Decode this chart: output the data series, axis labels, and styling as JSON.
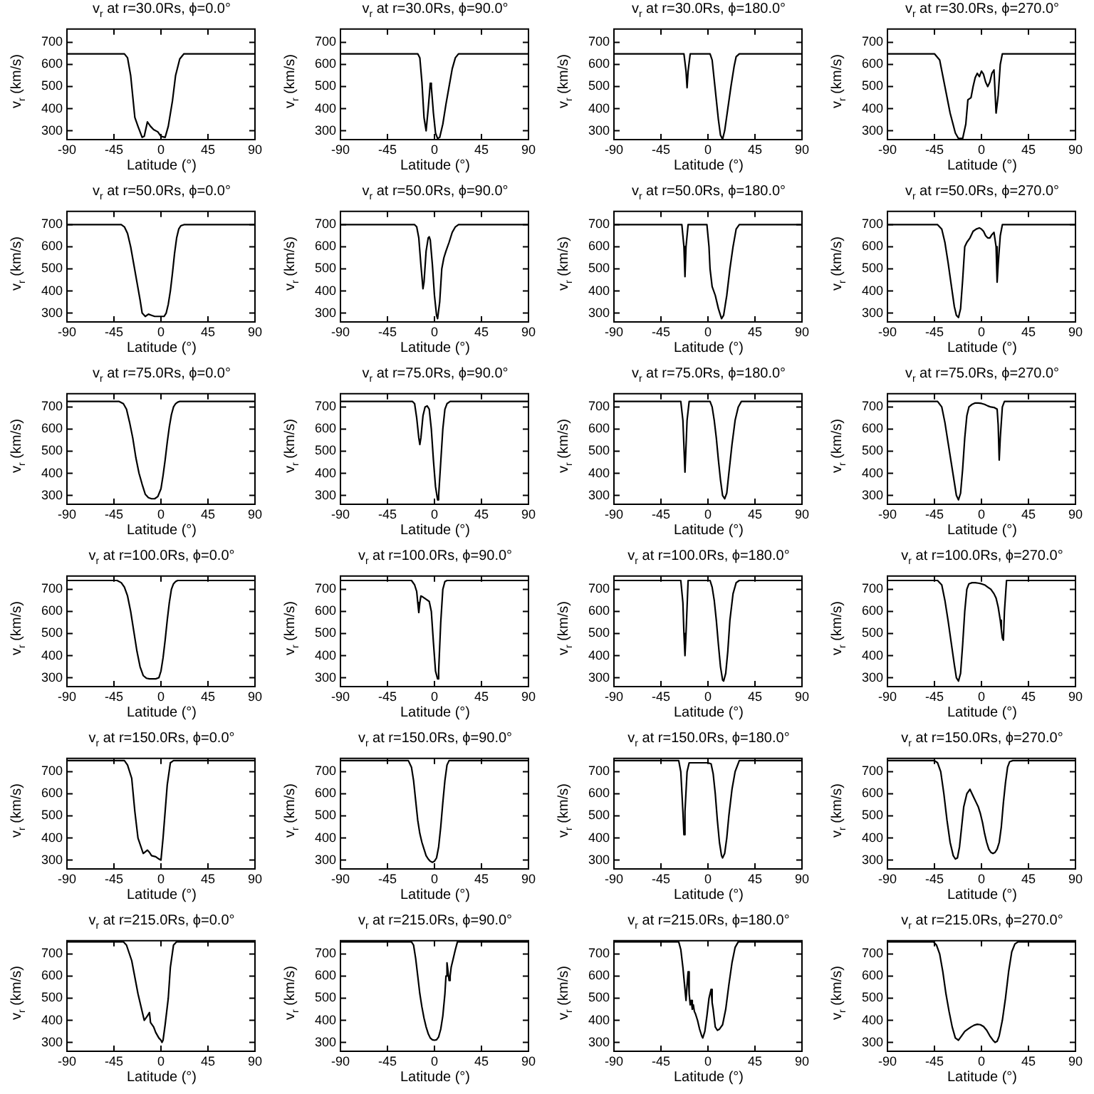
{
  "chart_data": [
    {
      "type": "line",
      "title": "v$_{r}$ at r=30.0Rs, ϕ=0.0°",
      "xlabel": "Latitude (°)",
      "ylabel": "v$_{r}$ (km/s)",
      "xlim": [
        -90,
        90
      ],
      "ylim": [
        260,
        760
      ],
      "xticks": [
        -90,
        -45,
        0,
        45,
        90
      ],
      "yticks": [
        300,
        400,
        500,
        600,
        700
      ],
      "color": "#000000",
      "x": [
        -90,
        -35,
        -32,
        -29,
        -25,
        -22,
        -18,
        -16,
        -13,
        -10,
        -7,
        -3,
        0,
        4,
        7,
        11,
        14,
        18,
        22,
        90
      ],
      "values": [
        648,
        648,
        630,
        550,
        360,
        320,
        270,
        275,
        340,
        320,
        305,
        295,
        275,
        270,
        320,
        435,
        550,
        625,
        648,
        648
      ]
    },
    {
      "type": "line",
      "title": "v$_{r}$ at r=30.0Rs, ϕ=90.0°",
      "xlabel": "Latitude (°)",
      "ylabel": "v$_{r}$ (km/s)",
      "xlim": [
        -90,
        90
      ],
      "ylim": [
        260,
        760
      ],
      "xticks": [
        -90,
        -45,
        0,
        45,
        90
      ],
      "yticks": [
        300,
        400,
        500,
        600,
        700
      ],
      "color": "#000000",
      "x": [
        -90,
        -16,
        -14,
        -12,
        -10,
        -8,
        -6,
        -4,
        -3,
        -1,
        1,
        3,
        5,
        8,
        11,
        14,
        17,
        20,
        23,
        90
      ],
      "values": [
        648,
        648,
        630,
        520,
        360,
        300,
        400,
        515,
        500,
        380,
        290,
        265,
        270,
        330,
        420,
        500,
        580,
        630,
        648,
        648
      ]
    },
    {
      "type": "line",
      "title": "v$_{r}$ at r=30.0Rs, ϕ=180.0°",
      "xlabel": "Latitude (°)",
      "ylabel": "v$_{r}$ (km/s)",
      "xlim": [
        -90,
        90
      ],
      "ylim": [
        260,
        760
      ],
      "xticks": [
        -90,
        -45,
        0,
        45,
        90
      ],
      "yticks": [
        300,
        400,
        500,
        600,
        700
      ],
      "color": "#000000",
      "x": [
        -90,
        -23,
        -21,
        -20,
        -19,
        -17,
        2,
        4,
        6,
        8,
        10,
        12,
        14,
        16,
        19,
        22,
        25,
        27,
        30,
        90
      ],
      "values": [
        648,
        648,
        570,
        495,
        570,
        648,
        648,
        620,
        530,
        440,
        350,
        280,
        262,
        300,
        400,
        500,
        590,
        635,
        648,
        648
      ]
    },
    {
      "type": "line",
      "title": "v$_{r}$ at r=30.0Rs, ϕ=270.0°",
      "xlabel": "Latitude (°)",
      "ylabel": "v$_{r}$ (km/s)",
      "xlim": [
        -90,
        90
      ],
      "ylim": [
        260,
        760
      ],
      "xticks": [
        -90,
        -45,
        0,
        45,
        90
      ],
      "yticks": [
        300,
        400,
        500,
        600,
        700
      ],
      "color": "#000000",
      "x": [
        -90,
        -45,
        -40,
        -35,
        -30,
        -25,
        -22,
        -18,
        -15,
        -13,
        -10,
        -8,
        -6,
        -4,
        -2,
        0,
        2,
        4,
        6,
        8,
        10,
        12,
        14,
        16,
        18,
        20,
        90
      ],
      "values": [
        648,
        648,
        620,
        500,
        380,
        290,
        265,
        265,
        330,
        440,
        450,
        500,
        540,
        560,
        545,
        570,
        555,
        520,
        500,
        520,
        560,
        575,
        380,
        460,
        600,
        648,
        648
      ]
    },
    {
      "type": "line",
      "title": "v$_{r}$ at r=50.0Rs, ϕ=0.0°",
      "xlabel": "Latitude (°)",
      "ylabel": "v$_{r}$ (km/s)",
      "xlim": [
        -90,
        90
      ],
      "ylim": [
        260,
        760
      ],
      "xticks": [
        -90,
        -45,
        0,
        45,
        90
      ],
      "yticks": [
        300,
        400,
        500,
        600,
        700
      ],
      "color": "#000000",
      "x": [
        -90,
        -38,
        -35,
        -32,
        -29,
        -26,
        -23,
        -20,
        -18,
        -15,
        -12,
        -9,
        -6,
        -3,
        0,
        3,
        5,
        7,
        9,
        11,
        13,
        15,
        17,
        19,
        22,
        90
      ],
      "values": [
        700,
        700,
        690,
        660,
        600,
        520,
        440,
        360,
        300,
        285,
        295,
        290,
        285,
        285,
        285,
        285,
        300,
        340,
        400,
        480,
        570,
        640,
        680,
        695,
        700,
        700
      ]
    },
    {
      "type": "line",
      "title": "v$_{r}$ at r=50.0Rs, ϕ=90.0°",
      "xlabel": "Latitude (°)",
      "ylabel": "v$_{r}$ (km/s)",
      "xlim": [
        -90,
        90
      ],
      "ylim": [
        260,
        760
      ],
      "xticks": [
        -90,
        -45,
        0,
        45,
        90
      ],
      "yticks": [
        300,
        400,
        500,
        600,
        700
      ],
      "color": "#000000",
      "x": [
        -90,
        -19,
        -17,
        -15,
        -13,
        -11,
        -10,
        -8,
        -6,
        -5,
        -4,
        -2,
        0,
        2,
        3,
        5,
        7,
        9,
        11,
        14,
        17,
        20,
        23,
        90
      ],
      "values": [
        700,
        700,
        690,
        640,
        520,
        410,
        440,
        580,
        640,
        645,
        630,
        520,
        380,
        290,
        275,
        350,
        500,
        550,
        580,
        620,
        665,
        690,
        700,
        700
      ]
    },
    {
      "type": "line",
      "title": "v$_{r}$ at r=50.0Rs, ϕ=180.0°",
      "xlabel": "Latitude (°)",
      "ylabel": "v$_{r}$ (km/s)",
      "xlim": [
        -90,
        90
      ],
      "ylim": [
        260,
        760
      ],
      "xticks": [
        -90,
        -45,
        0,
        45,
        90
      ],
      "yticks": [
        300,
        400,
        500,
        600,
        700
      ],
      "color": "#000000",
      "x": [
        -90,
        -25,
        -23,
        -22,
        -21,
        -19,
        -1,
        1,
        2,
        4,
        7,
        10,
        13,
        15,
        18,
        21,
        24,
        27,
        30,
        90
      ],
      "values": [
        700,
        700,
        600,
        465,
        600,
        700,
        700,
        600,
        500,
        420,
        380,
        320,
        275,
        290,
        380,
        500,
        600,
        680,
        700,
        700
      ]
    },
    {
      "type": "line",
      "title": "v$_{r}$ at r=50.0Rs, ϕ=270.0°",
      "xlabel": "Latitude (°)",
      "ylabel": "v$_{r}$ (km/s)",
      "xlim": [
        -90,
        90
      ],
      "ylim": [
        260,
        760
      ],
      "xticks": [
        -90,
        -45,
        0,
        45,
        90
      ],
      "yticks": [
        300,
        400,
        500,
        600,
        700
      ],
      "color": "#000000",
      "x": [
        -90,
        -42,
        -38,
        -35,
        -32,
        -29,
        -26,
        -24,
        -22,
        -20,
        -18,
        -16,
        -14,
        -11,
        -8,
        -5,
        -2,
        0,
        2,
        4,
        6,
        8,
        10,
        12,
        14,
        15,
        16,
        18,
        20,
        90
      ],
      "values": [
        700,
        700,
        680,
        620,
        530,
        430,
        330,
        290,
        280,
        320,
        450,
        600,
        620,
        640,
        670,
        680,
        685,
        680,
        670,
        650,
        640,
        640,
        655,
        665,
        600,
        440,
        520,
        650,
        700,
        700
      ]
    },
    {
      "type": "line",
      "title": "v$_{r}$ at r=75.0Rs, ϕ=0.0°",
      "xlabel": "Latitude (°)",
      "ylabel": "v$_{r}$ (km/s)",
      "xlim": [
        -90,
        90
      ],
      "ylim": [
        260,
        760
      ],
      "xticks": [
        -90,
        -45,
        0,
        45,
        90
      ],
      "yticks": [
        300,
        400,
        500,
        600,
        700
      ],
      "color": "#000000",
      "x": [
        -90,
        -40,
        -36,
        -33,
        -30,
        -27,
        -24,
        -21,
        -18,
        -15,
        -12,
        -9,
        -6,
        -3,
        0,
        2,
        4,
        6,
        8,
        10,
        12,
        14,
        16,
        18,
        21,
        90
      ],
      "values": [
        725,
        725,
        715,
        690,
        630,
        560,
        470,
        400,
        350,
        305,
        290,
        285,
        285,
        295,
        330,
        390,
        460,
        540,
        610,
        665,
        700,
        715,
        722,
        725,
        725,
        725
      ]
    },
    {
      "type": "line",
      "title": "v$_{r}$ at r=75.0Rs, ϕ=90.0°",
      "xlabel": "Latitude (°)",
      "ylabel": "v$_{r}$ (km/s)",
      "xlim": [
        -90,
        90
      ],
      "ylim": [
        260,
        760
      ],
      "xticks": [
        -90,
        -45,
        0,
        45,
        90
      ],
      "yticks": [
        300,
        400,
        500,
        600,
        700
      ],
      "color": "#000000",
      "x": [
        -90,
        -21,
        -19,
        -17,
        -15,
        -14,
        -13,
        -11,
        -9,
        -7,
        -5,
        -3,
        -1,
        1,
        3,
        4,
        6,
        8,
        10,
        12,
        15,
        90
      ],
      "values": [
        725,
        725,
        715,
        650,
        560,
        530,
        560,
        660,
        700,
        705,
        690,
        600,
        460,
        340,
        280,
        300,
        450,
        600,
        690,
        715,
        725,
        725
      ]
    },
    {
      "type": "line",
      "title": "v$_{r}$ at r=75.0Rs, ϕ=180.0°",
      "xlabel": "Latitude (°)",
      "ylabel": "v$_{r}$ (km/s)",
      "xlim": [
        -90,
        90
      ],
      "ylim": [
        260,
        760
      ],
      "xticks": [
        -90,
        -45,
        0,
        45,
        90
      ],
      "yticks": [
        300,
        400,
        500,
        600,
        700
      ],
      "color": "#000000",
      "x": [
        -90,
        -26,
        -24,
        -22,
        -20,
        -18,
        2,
        4,
        6,
        8,
        10,
        12,
        14,
        16,
        18,
        20,
        23,
        26,
        29,
        32,
        90
      ],
      "values": [
        725,
        725,
        640,
        405,
        640,
        725,
        725,
        700,
        640,
        560,
        460,
        370,
        300,
        285,
        310,
        400,
        530,
        640,
        700,
        725,
        725
      ]
    },
    {
      "type": "line",
      "title": "v$_{r}$ at r=75.0Rs, ϕ=270.0°",
      "xlabel": "Latitude (°)",
      "ylabel": "v$_{r}$ (km/s)",
      "xlim": [
        -90,
        90
      ],
      "ylim": [
        260,
        760
      ],
      "xticks": [
        -90,
        -45,
        0,
        45,
        90
      ],
      "yticks": [
        300,
        400,
        500,
        600,
        700
      ],
      "color": "#000000",
      "x": [
        -90,
        -42,
        -38,
        -35,
        -32,
        -29,
        -26,
        -24,
        -22,
        -20,
        -18,
        -16,
        -14,
        -12,
        -9,
        -6,
        -3,
        0,
        3,
        6,
        9,
        12,
        15,
        16,
        17,
        18,
        20,
        22,
        90
      ],
      "values": [
        725,
        725,
        700,
        630,
        540,
        450,
        360,
        300,
        280,
        310,
        420,
        560,
        660,
        700,
        712,
        718,
        718,
        716,
        712,
        705,
        700,
        698,
        690,
        620,
        460,
        560,
        700,
        725,
        725
      ]
    },
    {
      "type": "line",
      "title": "v$_{r}$ at r=100.0Rs, ϕ=0.0°",
      "xlabel": "Latitude (°)",
      "ylabel": "v$_{r}$ (km/s)",
      "xlim": [
        -90,
        90
      ],
      "ylim": [
        260,
        760
      ],
      "xticks": [
        -90,
        -45,
        0,
        45,
        90
      ],
      "yticks": [
        300,
        400,
        500,
        600,
        700
      ],
      "color": "#000000",
      "x": [
        -90,
        -42,
        -38,
        -35,
        -32,
        -29,
        -26,
        -23,
        -20,
        -17,
        -14,
        -11,
        -8,
        -5,
        -2,
        0,
        2,
        4,
        6,
        8,
        10,
        12,
        14,
        16,
        19,
        90
      ],
      "values": [
        740,
        740,
        730,
        710,
        670,
        600,
        510,
        420,
        350,
        310,
        298,
        295,
        295,
        295,
        300,
        330,
        390,
        470,
        560,
        640,
        700,
        725,
        735,
        740,
        740,
        740
      ]
    },
    {
      "type": "line",
      "title": "v$_{r}$ at r=100.0Rs, ϕ=90.0°",
      "xlabel": "Latitude (°)",
      "ylabel": "v$_{r}$ (km/s)",
      "xlim": [
        -90,
        90
      ],
      "ylim": [
        260,
        760
      ],
      "xticks": [
        -90,
        -45,
        0,
        45,
        90
      ],
      "yticks": [
        300,
        400,
        500,
        600,
        700
      ],
      "color": "#000000",
      "x": [
        -90,
        -22,
        -19,
        -17,
        -16,
        -15,
        -14,
        -13,
        -11,
        -8,
        -5,
        -3,
        -1,
        1,
        3,
        4,
        6,
        8,
        10,
        12,
        90
      ],
      "values": [
        740,
        740,
        720,
        690,
        640,
        595,
        640,
        670,
        665,
        655,
        645,
        600,
        460,
        330,
        295,
        330,
        550,
        700,
        735,
        740,
        740
      ]
    },
    {
      "type": "line",
      "title": "v$_{r}$ at r=100.0Rs, ϕ=180.0°",
      "xlabel": "Latitude (°)",
      "ylabel": "v$_{r}$ (km/s)",
      "xlim": [
        -90,
        90
      ],
      "ylim": [
        260,
        760
      ],
      "xticks": [
        -90,
        -45,
        0,
        45,
        90
      ],
      "yticks": [
        300,
        400,
        500,
        600,
        700
      ],
      "color": "#000000",
      "x": [
        -90,
        -26,
        -24,
        -23,
        -22,
        -21,
        -19,
        2,
        4,
        6,
        8,
        10,
        12,
        14,
        15,
        17,
        19,
        21,
        24,
        27,
        30,
        90
      ],
      "values": [
        740,
        740,
        640,
        500,
        400,
        500,
        740,
        740,
        710,
        650,
        560,
        450,
        350,
        290,
        285,
        320,
        420,
        560,
        680,
        730,
        740,
        740
      ]
    },
    {
      "type": "line",
      "title": "v$_{r}$ at r=100.0Rs, ϕ=270.0°",
      "xlabel": "Latitude (°)",
      "ylabel": "v$_{r}$ (km/s)",
      "xlim": [
        -90,
        90
      ],
      "ylim": [
        260,
        760
      ],
      "xticks": [
        -90,
        -45,
        0,
        45,
        90
      ],
      "yticks": [
        300,
        400,
        500,
        600,
        700
      ],
      "color": "#000000",
      "x": [
        -90,
        -42,
        -38,
        -35,
        -32,
        -29,
        -26,
        -24,
        -22,
        -20,
        -18,
        -16,
        -14,
        -12,
        -9,
        -6,
        -3,
        0,
        3,
        6,
        9,
        12,
        14,
        16,
        18,
        19,
        20,
        21,
        22,
        24,
        90
      ],
      "values": [
        740,
        740,
        720,
        650,
        560,
        460,
        360,
        300,
        285,
        320,
        450,
        600,
        700,
        725,
        730,
        730,
        728,
        725,
        720,
        710,
        700,
        680,
        660,
        620,
        560,
        520,
        480,
        470,
        600,
        740,
        740
      ]
    },
    {
      "type": "line",
      "title": "v$_{r}$ at r=150.0Rs, ϕ=0.0°",
      "xlabel": "Latitude (°)",
      "ylabel": "v$_{r}$ (km/s)",
      "xlim": [
        -90,
        90
      ],
      "ylim": [
        260,
        760
      ],
      "xticks": [
        -90,
        -45,
        0,
        45,
        90
      ],
      "yticks": [
        300,
        400,
        500,
        600,
        700
      ],
      "color": "#000000",
      "x": [
        -90,
        -35,
        -32,
        -28,
        -25,
        -22,
        -17,
        -13,
        -11,
        -9,
        -5,
        -2,
        0,
        2,
        4,
        6,
        9,
        12,
        90
      ],
      "values": [
        750,
        750,
        730,
        670,
        520,
        400,
        330,
        345,
        335,
        320,
        315,
        305,
        300,
        400,
        520,
        640,
        740,
        750,
        750
      ]
    },
    {
      "type": "line",
      "title": "v$_{r}$ at r=150.0Rs, ϕ=90.0°",
      "xlabel": "Latitude (°)",
      "ylabel": "v$_{r}$ (km/s)",
      "xlim": [
        -90,
        90
      ],
      "ylim": [
        260,
        760
      ],
      "xticks": [
        -90,
        -45,
        0,
        45,
        90
      ],
      "yticks": [
        300,
        400,
        500,
        600,
        700
      ],
      "color": "#000000",
      "x": [
        -90,
        -25,
        -22,
        -20,
        -18,
        -16,
        -14,
        -12,
        -10,
        -8,
        -6,
        -4,
        -2,
        0,
        2,
        4,
        6,
        8,
        10,
        12,
        14,
        90
      ],
      "values": [
        750,
        750,
        720,
        660,
        570,
        480,
        420,
        380,
        350,
        320,
        305,
        295,
        290,
        295,
        310,
        360,
        450,
        560,
        660,
        730,
        750,
        750
      ]
    },
    {
      "type": "line",
      "title": "v$_{r}$ at r=150.0Rs, ϕ=180.0°",
      "xlabel": "Latitude (°)",
      "ylabel": "v$_{r}$ (km/s)",
      "xlim": [
        -90,
        90
      ],
      "ylim": [
        260,
        760
      ],
      "xticks": [
        -90,
        -45,
        0,
        45,
        90
      ],
      "yticks": [
        300,
        400,
        500,
        600,
        700
      ],
      "color": "#000000",
      "x": [
        -90,
        -28,
        -26,
        -24,
        -23,
        -22,
        -20,
        -18,
        -10,
        0,
        3,
        5,
        7,
        9,
        11,
        13,
        14,
        16,
        18,
        20,
        23,
        26,
        30,
        90
      ],
      "values": [
        750,
        750,
        700,
        520,
        415,
        520,
        700,
        740,
        740,
        740,
        735,
        690,
        600,
        480,
        380,
        320,
        310,
        330,
        400,
        500,
        620,
        700,
        750,
        750
      ]
    },
    {
      "type": "line",
      "title": "v$_{r}$ at r=150.0Rs, ϕ=270.0°",
      "xlabel": "Latitude (°)",
      "ylabel": "v$_{r}$ (km/s)",
      "xlim": [
        -90,
        90
      ],
      "ylim": [
        260,
        760
      ],
      "xticks": [
        -90,
        -45,
        0,
        45,
        90
      ],
      "yticks": [
        300,
        400,
        500,
        600,
        700
      ],
      "color": "#000000",
      "x": [
        -90,
        -45,
        -42,
        -39,
        -36,
        -33,
        -30,
        -27,
        -25,
        -23,
        -21,
        -19,
        -17,
        -14,
        -11,
        -9,
        -7,
        -5,
        -3,
        -1,
        1,
        3,
        5,
        7,
        9,
        11,
        13,
        15,
        17,
        19,
        21,
        23,
        25,
        27,
        30,
        90
      ],
      "values": [
        750,
        750,
        740,
        700,
        600,
        480,
        380,
        320,
        305,
        310,
        360,
        450,
        540,
        600,
        620,
        600,
        580,
        560,
        540,
        510,
        470,
        420,
        380,
        350,
        335,
        330,
        335,
        350,
        380,
        450,
        560,
        650,
        720,
        745,
        750,
        750
      ]
    },
    {
      "type": "line",
      "title": "v$_{r}$ at r=215.0Rs, ϕ=0.0°",
      "xlabel": "Latitude (°)",
      "ylabel": "v$_{r}$ (km/s)",
      "xlim": [
        -90,
        90
      ],
      "ylim": [
        260,
        760
      ],
      "xticks": [
        -90,
        -45,
        0,
        45,
        90
      ],
      "yticks": [
        300,
        400,
        500,
        600,
        700
      ],
      "color": "#000000",
      "x": [
        -90,
        -36,
        -33,
        -28,
        -22,
        -18,
        -16,
        -13,
        -11,
        -10,
        -7,
        -5,
        -2,
        0,
        1,
        2,
        4,
        7,
        9,
        12,
        15,
        90
      ],
      "values": [
        755,
        755,
        740,
        670,
        520,
        440,
        400,
        420,
        435,
        390,
        370,
        345,
        320,
        310,
        300,
        310,
        380,
        500,
        640,
        740,
        755,
        755
      ]
    },
    {
      "type": "line",
      "title": "v$_{r}$ at r=215.0Rs, ϕ=90.0°",
      "xlabel": "Latitude (°)",
      "ylabel": "v$_{r}$ (km/s)",
      "xlim": [
        -90,
        90
      ],
      "ylim": [
        260,
        760
      ],
      "xticks": [
        -90,
        -45,
        0,
        45,
        90
      ],
      "yticks": [
        300,
        400,
        500,
        600,
        700
      ],
      "color": "#000000",
      "x": [
        -90,
        -22,
        -20,
        -18,
        -16,
        -14,
        -12,
        -10,
        -8,
        -6,
        -4,
        -2,
        0,
        2,
        4,
        6,
        8,
        10,
        11,
        12,
        13,
        14,
        15,
        16,
        18,
        20,
        22,
        90
      ],
      "values": [
        755,
        755,
        740,
        680,
        600,
        520,
        460,
        410,
        370,
        340,
        320,
        312,
        310,
        312,
        325,
        360,
        420,
        520,
        600,
        660,
        620,
        580,
        600,
        640,
        680,
        720,
        755,
        755
      ]
    },
    {
      "type": "line",
      "title": "v$_{r}$ at r=215.0Rs, ϕ=180.0°",
      "xlabel": "Latitude (°)",
      "ylabel": "v$_{r}$ (km/s)",
      "xlim": [
        -90,
        90
      ],
      "ylim": [
        260,
        760
      ],
      "xticks": [
        -90,
        -45,
        0,
        45,
        90
      ],
      "yticks": [
        300,
        400,
        500,
        600,
        700
      ],
      "color": "#000000",
      "x": [
        -90,
        -28,
        -26,
        -24,
        -22,
        -21,
        -20,
        -19,
        -18,
        -17,
        -16,
        -15,
        -14,
        -13,
        -12,
        -10,
        -8,
        -6,
        -5,
        -3,
        -1,
        1,
        3,
        4,
        5,
        7,
        9,
        11,
        14,
        17,
        20,
        23,
        26,
        29,
        90
      ],
      "values": [
        755,
        755,
        720,
        640,
        540,
        490,
        560,
        620,
        520,
        470,
        490,
        450,
        470,
        440,
        430,
        400,
        360,
        330,
        320,
        350,
        420,
        500,
        540,
        480,
        450,
        370,
        355,
        360,
        380,
        450,
        560,
        660,
        730,
        755,
        755
      ]
    },
    {
      "type": "line",
      "title": "v$_{r}$ at r=215.0Rs, ϕ=270.0°",
      "xlabel": "Latitude (°)",
      "ylabel": "v$_{r}$ (km/s)",
      "xlim": [
        -90,
        90
      ],
      "ylim": [
        260,
        760
      ],
      "xticks": [
        -90,
        -45,
        0,
        45,
        90
      ],
      "yticks": [
        300,
        400,
        500,
        600,
        700
      ],
      "color": "#000000",
      "x": [
        -90,
        -46,
        -43,
        -40,
        -37,
        -34,
        -31,
        -28,
        -25,
        -22,
        -19,
        -16,
        -13,
        -10,
        -7,
        -4,
        -1,
        2,
        5,
        8,
        11,
        13,
        15,
        17,
        20,
        23,
        26,
        29,
        32,
        35,
        90
      ],
      "values": [
        755,
        755,
        740,
        700,
        620,
        520,
        440,
        370,
        320,
        310,
        330,
        350,
        360,
        370,
        378,
        382,
        380,
        372,
        355,
        330,
        310,
        300,
        305,
        330,
        400,
        500,
        620,
        710,
        745,
        755,
        755
      ]
    }
  ]
}
